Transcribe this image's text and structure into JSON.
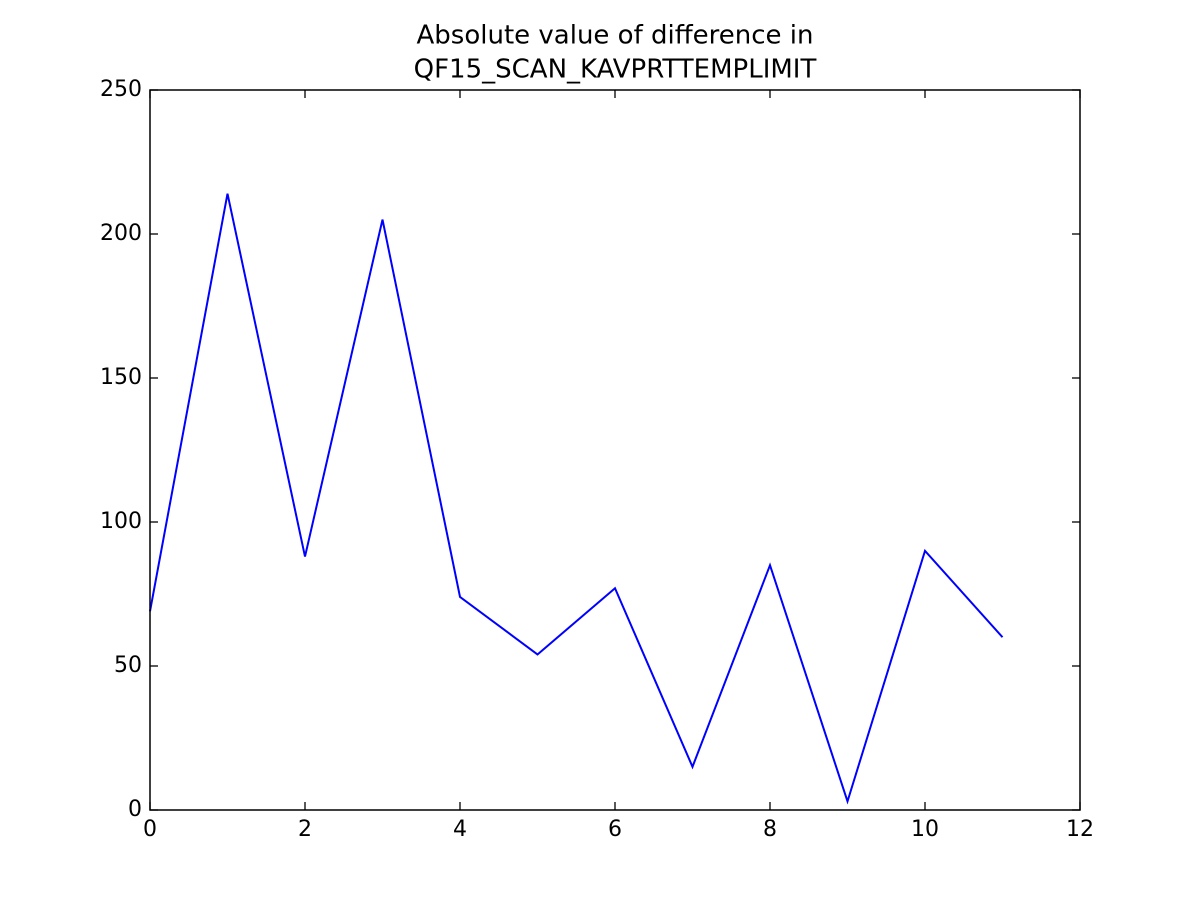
{
  "chart_data": {
    "type": "line",
    "title": [
      "Absolute value of difference in",
      "QF15_SCAN_KAVPRTTEMPLIMIT"
    ],
    "x": [
      0,
      1,
      2,
      3,
      4,
      5,
      6,
      7,
      8,
      9,
      10,
      11
    ],
    "values": [
      69,
      214,
      88,
      205,
      74,
      54,
      77,
      15,
      85,
      3,
      90,
      60
    ],
    "color": "#0000ff",
    "xlim": [
      0,
      12
    ],
    "xticks": [
      0,
      2,
      4,
      6,
      8,
      10,
      12
    ],
    "ylim": [
      0,
      250
    ],
    "yticks": [
      0,
      50,
      100,
      150,
      200,
      250
    ],
    "grid": false
  }
}
